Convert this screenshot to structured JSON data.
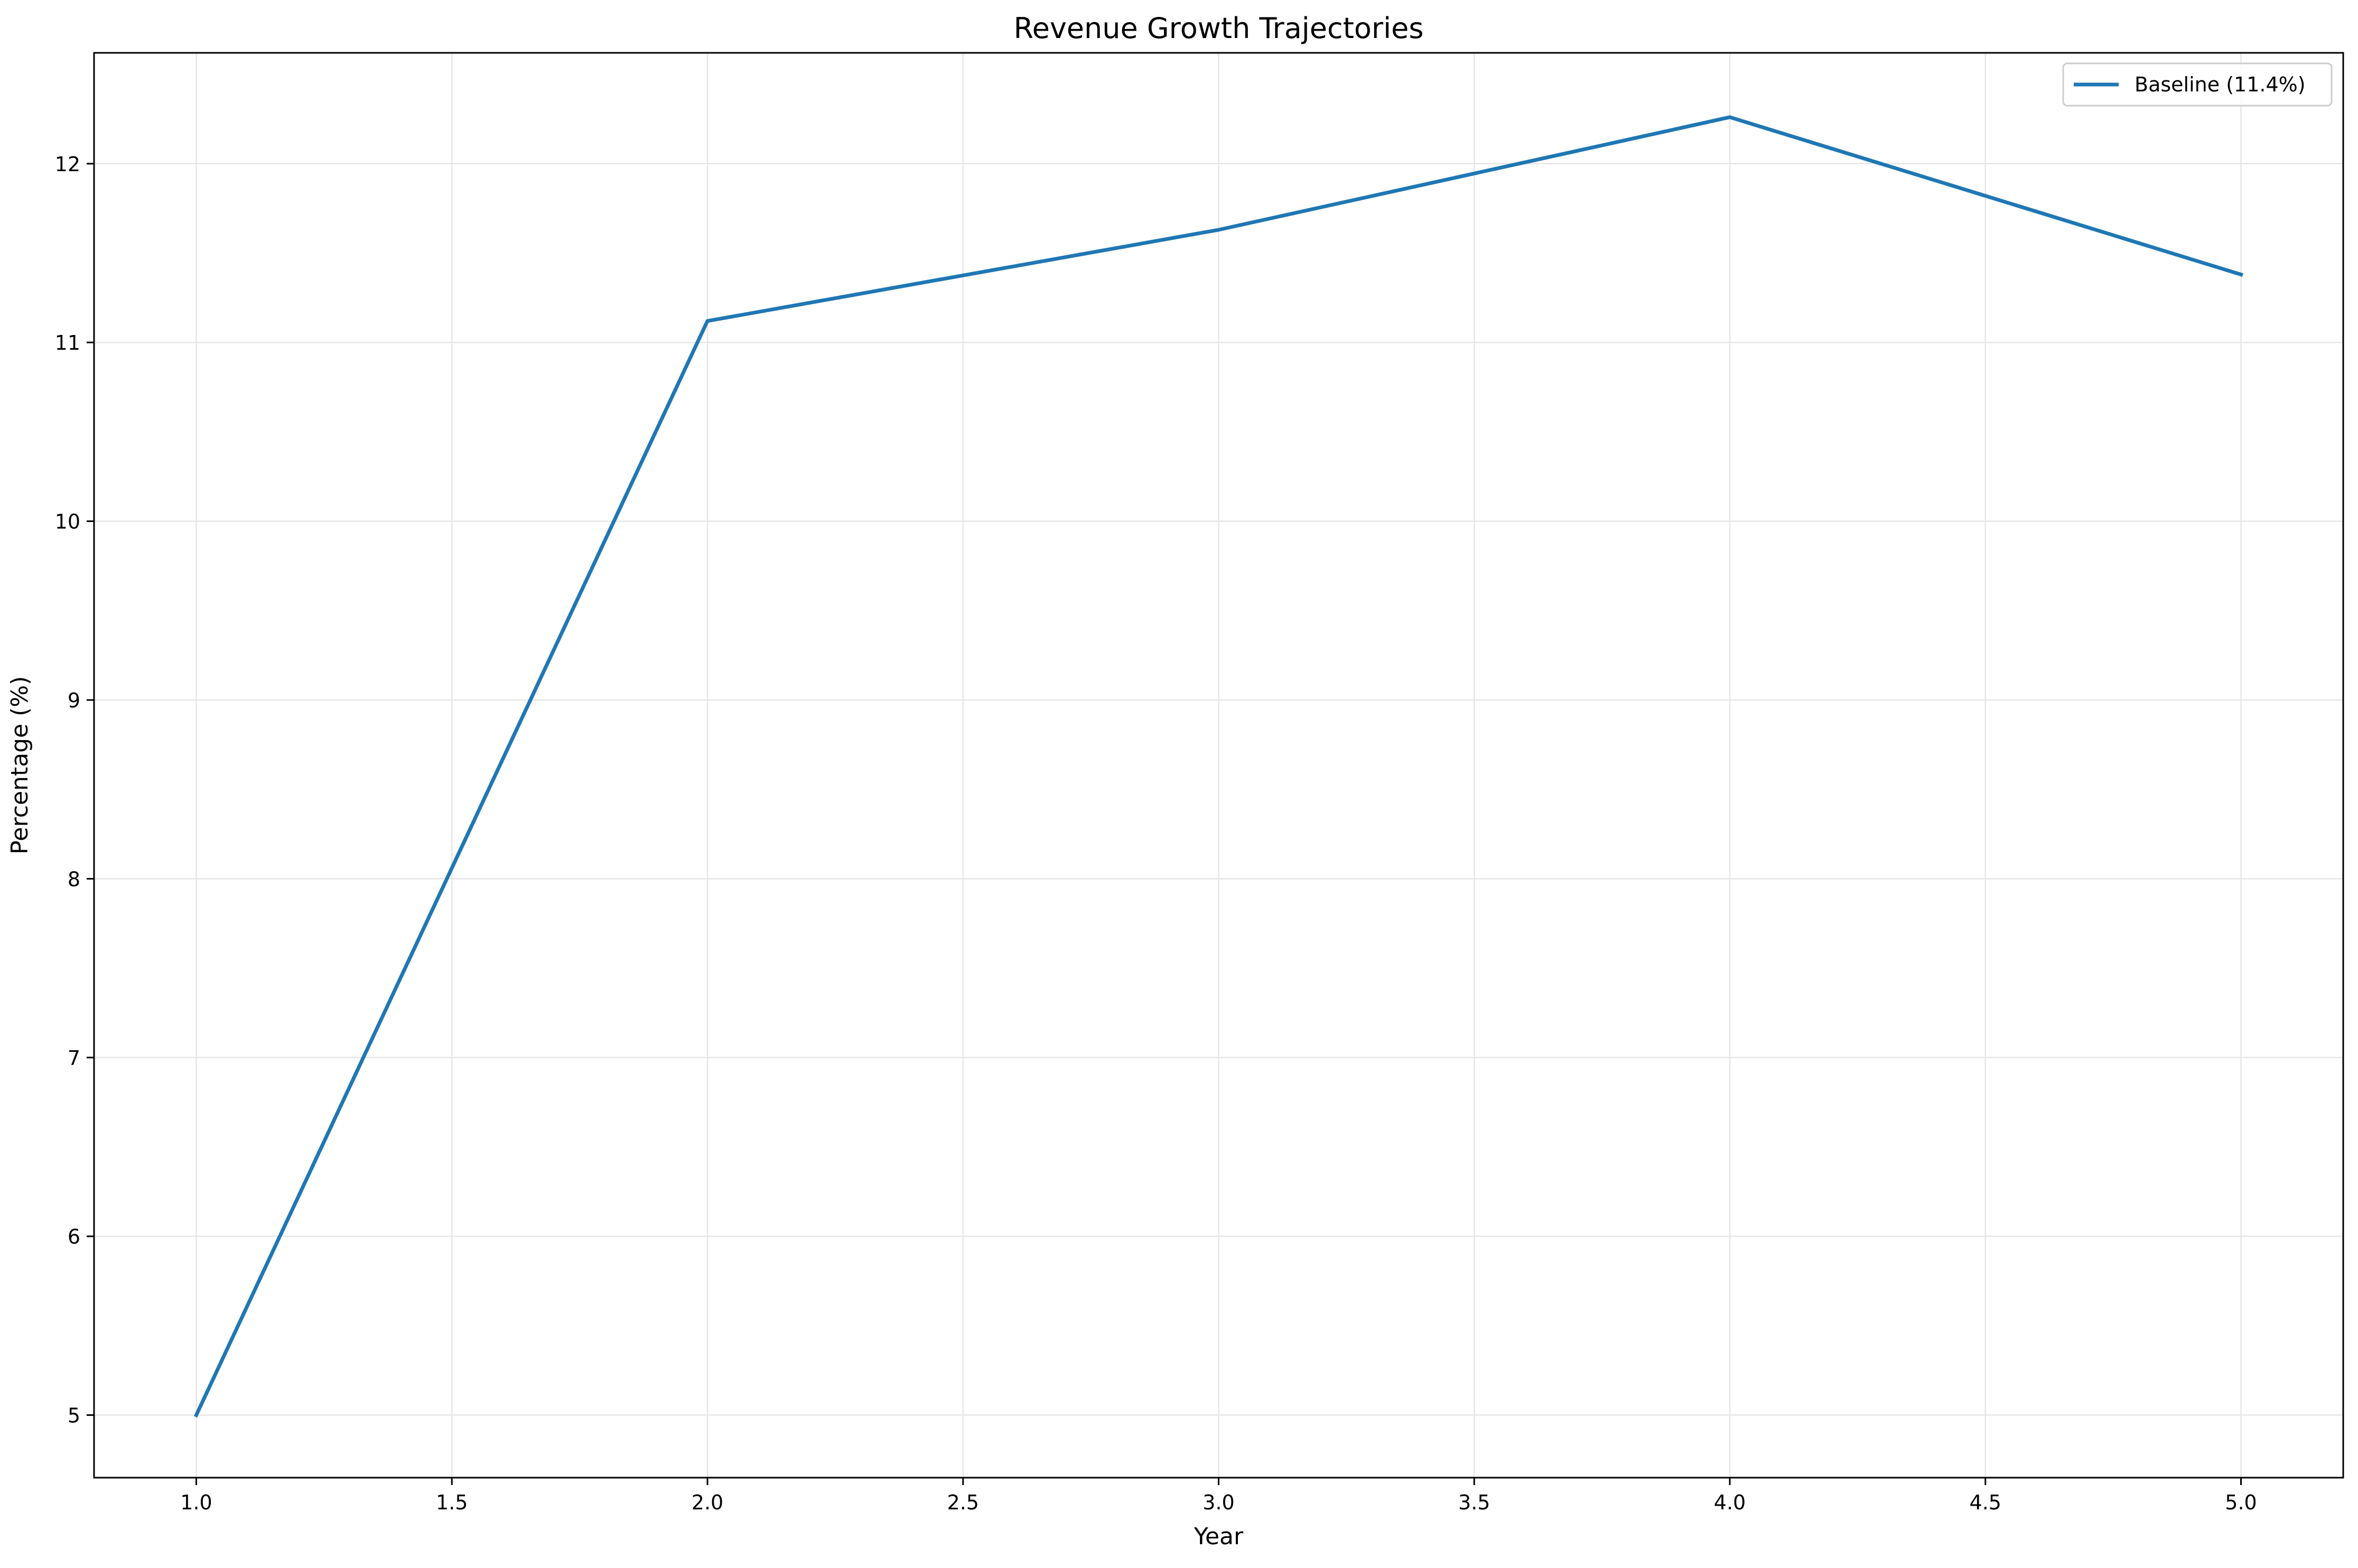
{
  "chart_data": {
    "type": "line",
    "title": "Revenue Growth Trajectories",
    "xlabel": "Year",
    "ylabel": "Percentage (%)",
    "xlim": [
      0.8,
      5.2
    ],
    "ylim": [
      4.65,
      12.62
    ],
    "xticks": [
      1.0,
      1.5,
      2.0,
      2.5,
      3.0,
      3.5,
      4.0,
      4.5,
      5.0
    ],
    "xtick_labels": [
      "1.0",
      "1.5",
      "2.0",
      "2.5",
      "3.0",
      "3.5",
      "4.0",
      "4.5",
      "5.0"
    ],
    "yticks": [
      5,
      6,
      7,
      8,
      9,
      10,
      11,
      12
    ],
    "ytick_labels": [
      "5",
      "6",
      "7",
      "8",
      "9",
      "10",
      "11",
      "12"
    ],
    "grid": true,
    "legend_position": "top-right",
    "x": [
      1,
      2,
      3,
      4,
      5
    ],
    "series": [
      {
        "name": "Baseline (11.4%)",
        "color": "#1f77b4",
        "values": [
          5.0,
          11.12,
          11.63,
          12.26,
          11.38
        ]
      }
    ]
  }
}
